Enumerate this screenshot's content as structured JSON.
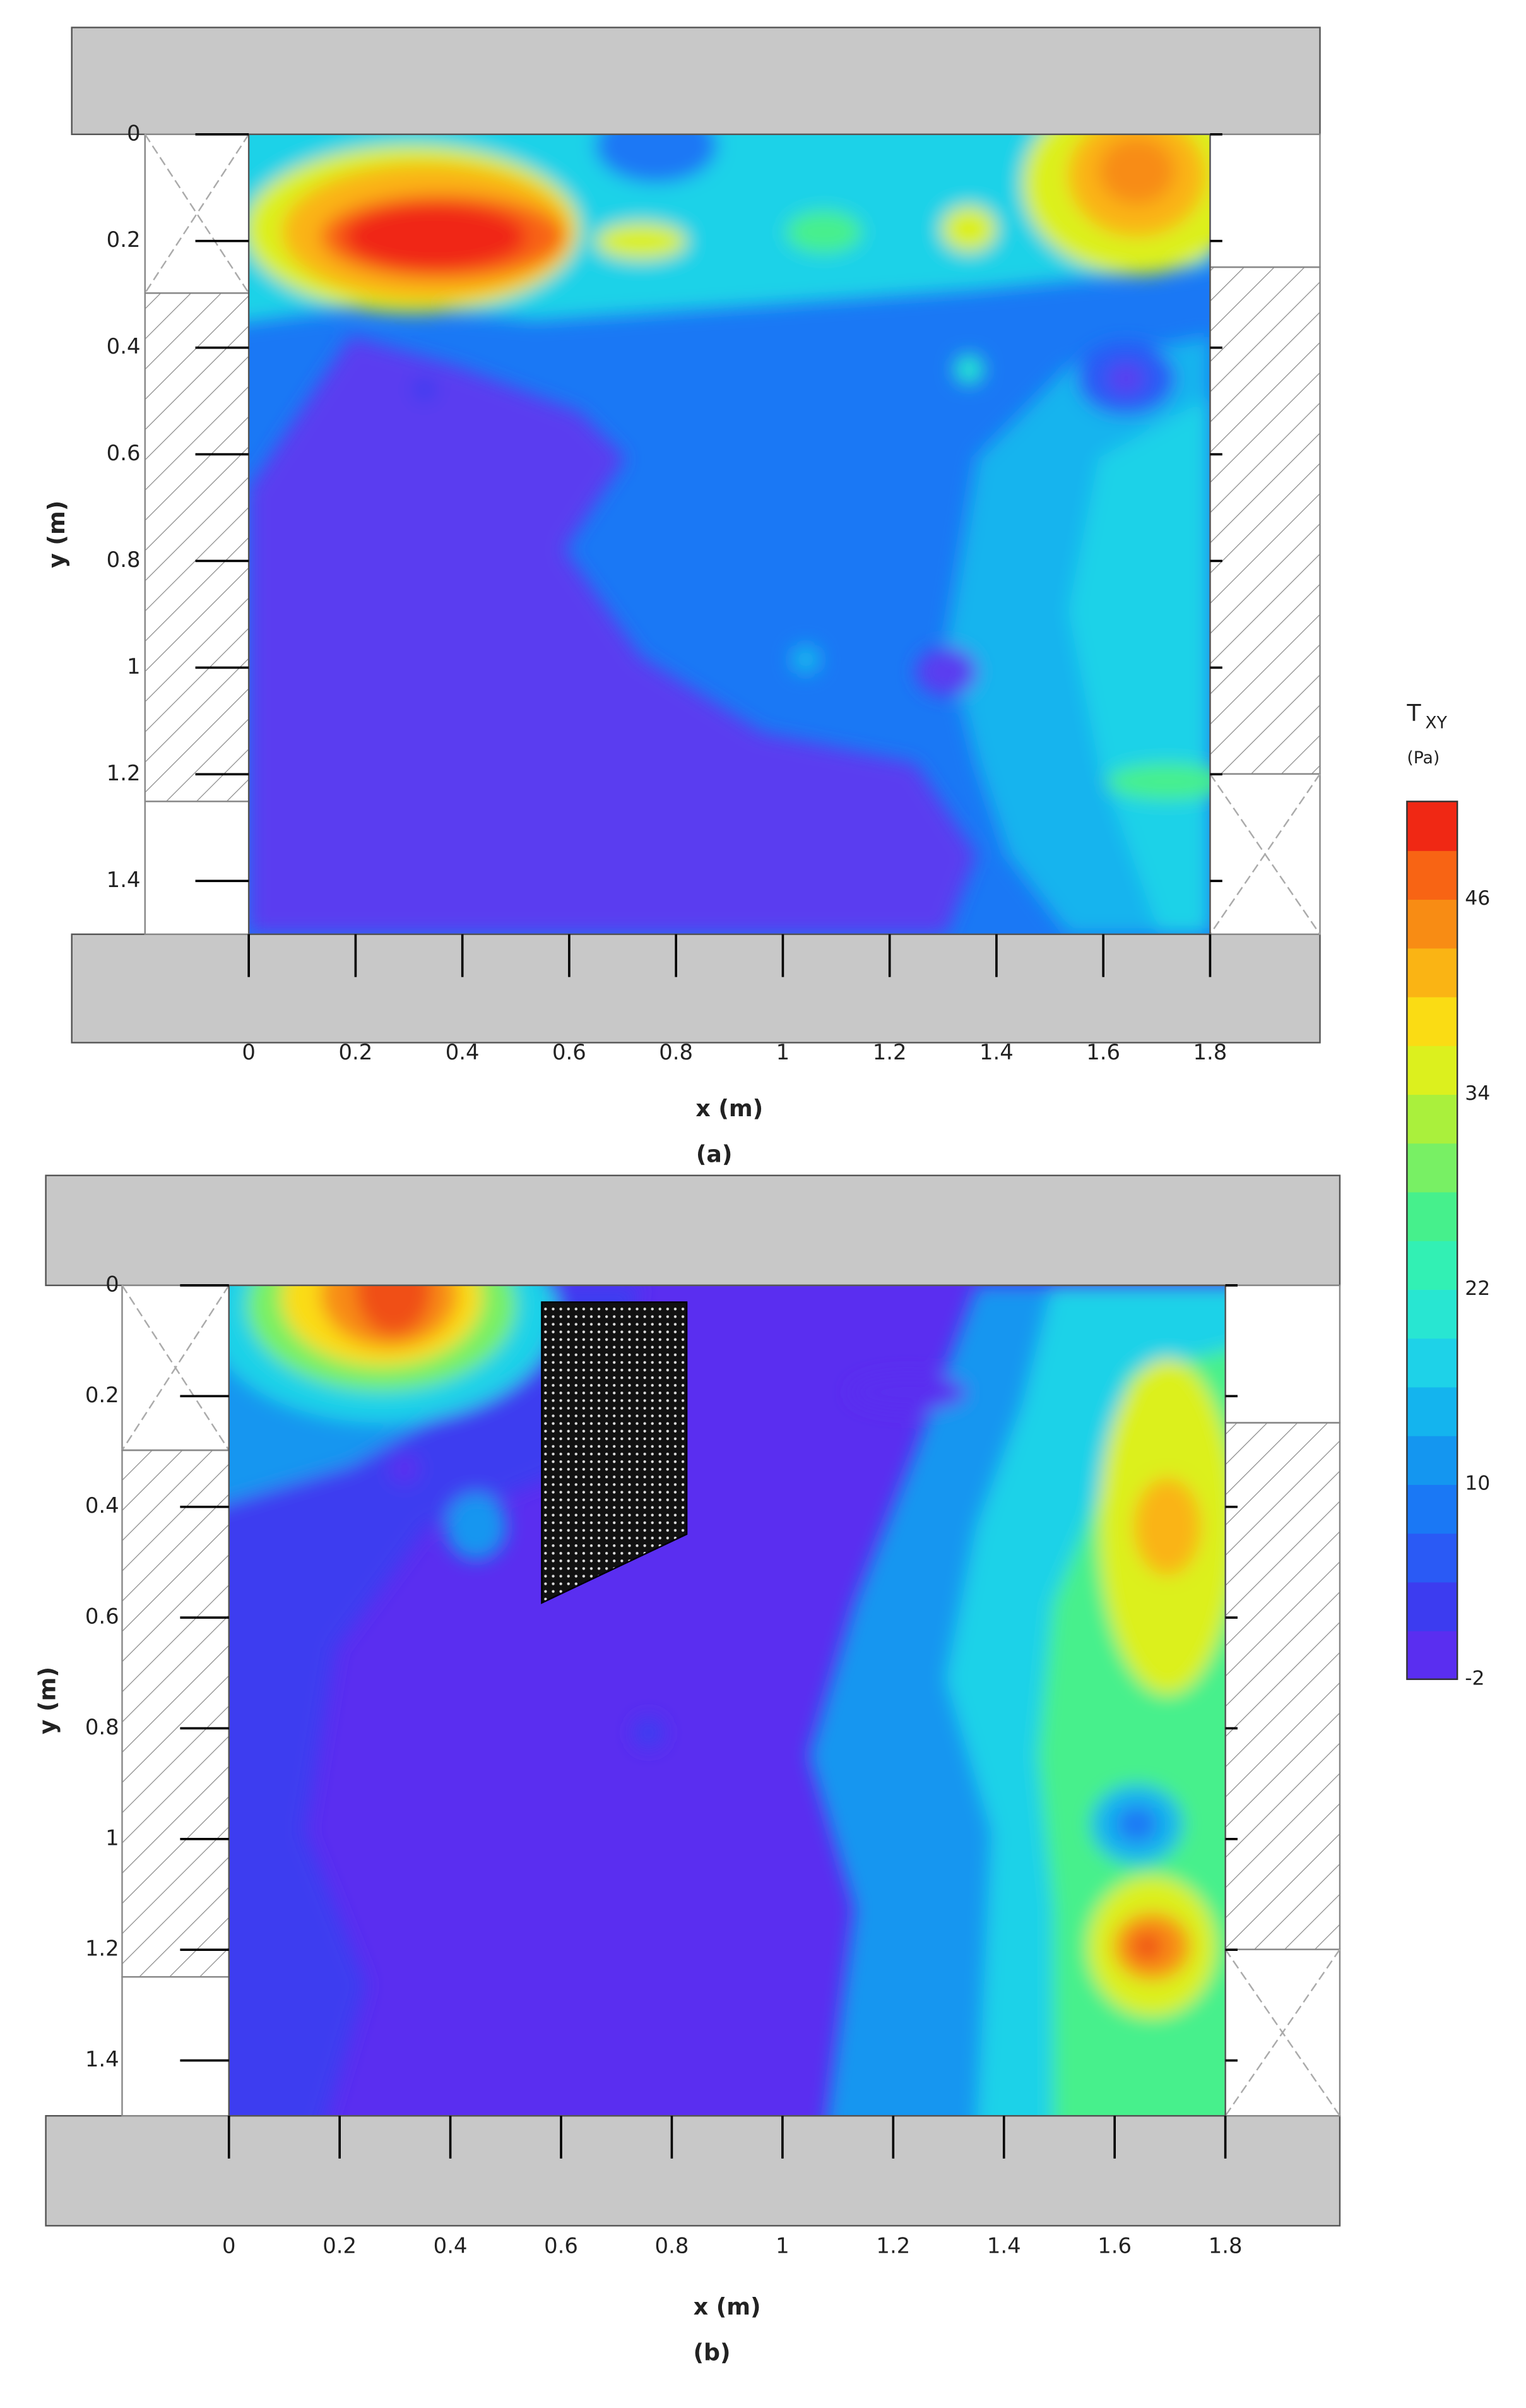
{
  "chart_data": [
    {
      "type": "contour",
      "caption": "(a)",
      "xlabel": "x (m)",
      "ylabel": "y (m)",
      "xlim": [
        0,
        1.8
      ],
      "ylim": [
        0,
        1.5
      ],
      "y_inverted": true,
      "xticks": [
        0,
        0.2,
        0.4,
        0.6,
        0.8,
        1,
        1.2,
        1.4,
        1.6,
        1.8
      ],
      "yticks": [
        0,
        0.2,
        0.4,
        0.6,
        0.8,
        1,
        1.2,
        1.4
      ]
    },
    {
      "type": "contour",
      "caption": "(b)",
      "xlabel": "x (m)",
      "ylabel": "y (m)",
      "xlim": [
        0,
        1.8
      ],
      "ylim": [
        0,
        1.5
      ],
      "y_inverted": true,
      "xticks": [
        0,
        0.2,
        0.4,
        0.6,
        0.8,
        1,
        1.2,
        1.4,
        1.6,
        1.8
      ],
      "yticks": [
        0,
        0.2,
        0.4,
        0.6,
        0.8,
        1,
        1.2,
        1.4
      ]
    },
    {
      "type": "colorbar",
      "title": "T",
      "title_subscript": "XY",
      "unit": "(Pa)",
      "lim": [
        -2,
        52
      ],
      "ticks": [
        -2,
        10,
        22,
        34,
        46
      ],
      "colors": [
        "#5a2ef0",
        "#3c3cf0",
        "#2a5af5",
        "#1a78f5",
        "#1496f0",
        "#14b4ee",
        "#1ed2e8",
        "#28e6d2",
        "#32f0b4",
        "#46f08c",
        "#78f064",
        "#aaf03c",
        "#dcf01e",
        "#fadc14",
        "#fab414",
        "#f88c14",
        "#f86414",
        "#f02814"
      ]
    }
  ]
}
